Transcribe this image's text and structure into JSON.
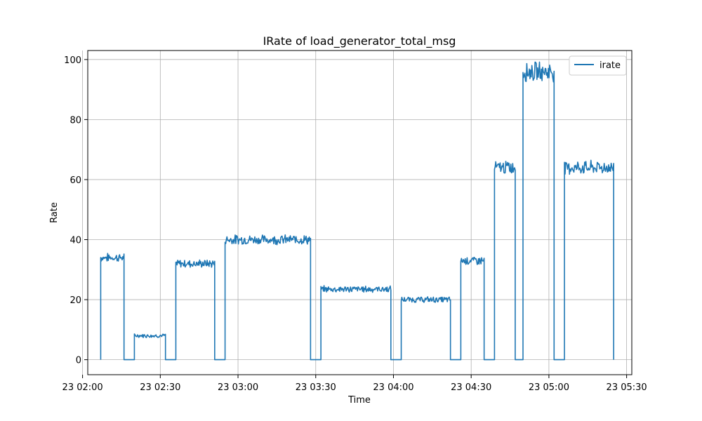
{
  "chart_data": {
    "type": "line",
    "title": "IRate of load_generator_total_msg",
    "xlabel": "Time",
    "ylabel": "Rate",
    "x_axis_type": "time",
    "x_range": [
      "2024-01-23 02:02",
      "2024-01-23 05:32"
    ],
    "ylim": [
      -5,
      103
    ],
    "grid": true,
    "legend_position": "top-right",
    "x_ticks": [
      {
        "time": "2024-01-23 02:00",
        "label": "23 02:00"
      },
      {
        "time": "2024-01-23 02:30",
        "label": "23 02:30"
      },
      {
        "time": "2024-01-23 03:00",
        "label": "23 03:00"
      },
      {
        "time": "2024-01-23 03:30",
        "label": "23 03:30"
      },
      {
        "time": "2024-01-23 04:00",
        "label": "23 04:00"
      },
      {
        "time": "2024-01-23 04:30",
        "label": "23 04:30"
      },
      {
        "time": "2024-01-23 05:00",
        "label": "23 05:00"
      },
      {
        "time": "2024-01-23 05:30",
        "label": "23 05:30"
      }
    ],
    "y_ticks": [
      0,
      20,
      40,
      60,
      80,
      100
    ],
    "series": [
      {
        "name": "irate",
        "color": "#1f77b4",
        "segments": [
          {
            "start": "2024-01-23 02:07",
            "end": "2024-01-23 02:16",
            "level": 34
          },
          {
            "start": "2024-01-23 02:16",
            "end": "2024-01-23 02:20",
            "level": 0
          },
          {
            "start": "2024-01-23 02:20",
            "end": "2024-01-23 02:32",
            "level": 8
          },
          {
            "start": "2024-01-23 02:32",
            "end": "2024-01-23 02:36",
            "level": 0
          },
          {
            "start": "2024-01-23 02:36",
            "end": "2024-01-23 02:51",
            "level": 32
          },
          {
            "start": "2024-01-23 02:51",
            "end": "2024-01-23 02:55",
            "level": 0
          },
          {
            "start": "2024-01-23 02:55",
            "end": "2024-01-23 03:28",
            "level": 40
          },
          {
            "start": "2024-01-23 03:28",
            "end": "2024-01-23 03:32",
            "level": 0
          },
          {
            "start": "2024-01-23 03:32",
            "end": "2024-01-23 03:59",
            "level": 23.5
          },
          {
            "start": "2024-01-23 03:59",
            "end": "2024-01-23 04:03",
            "level": 0
          },
          {
            "start": "2024-01-23 04:03",
            "end": "2024-01-23 04:22",
            "level": 20
          },
          {
            "start": "2024-01-23 04:22",
            "end": "2024-01-23 04:26",
            "level": 0
          },
          {
            "start": "2024-01-23 04:26",
            "end": "2024-01-23 04:35",
            "level": 33
          },
          {
            "start": "2024-01-23 04:35",
            "end": "2024-01-23 04:39",
            "level": 0
          },
          {
            "start": "2024-01-23 04:39",
            "end": "2024-01-23 04:47",
            "level": 64
          },
          {
            "start": "2024-01-23 04:47",
            "end": "2024-01-23 04:50",
            "level": 0
          },
          {
            "start": "2024-01-23 04:50",
            "end": "2024-01-23 05:02",
            "level": 96
          },
          {
            "start": "2024-01-23 05:02",
            "end": "2024-01-23 05:06",
            "level": 0
          },
          {
            "start": "2024-01-23 05:06",
            "end": "2024-01-23 05:25",
            "level": 64
          }
        ],
        "final_point": {
          "time": "2024-01-23 05:25",
          "level": 0
        },
        "first_point": {
          "time": "2024-01-23 02:07",
          "level": 0
        }
      }
    ]
  }
}
